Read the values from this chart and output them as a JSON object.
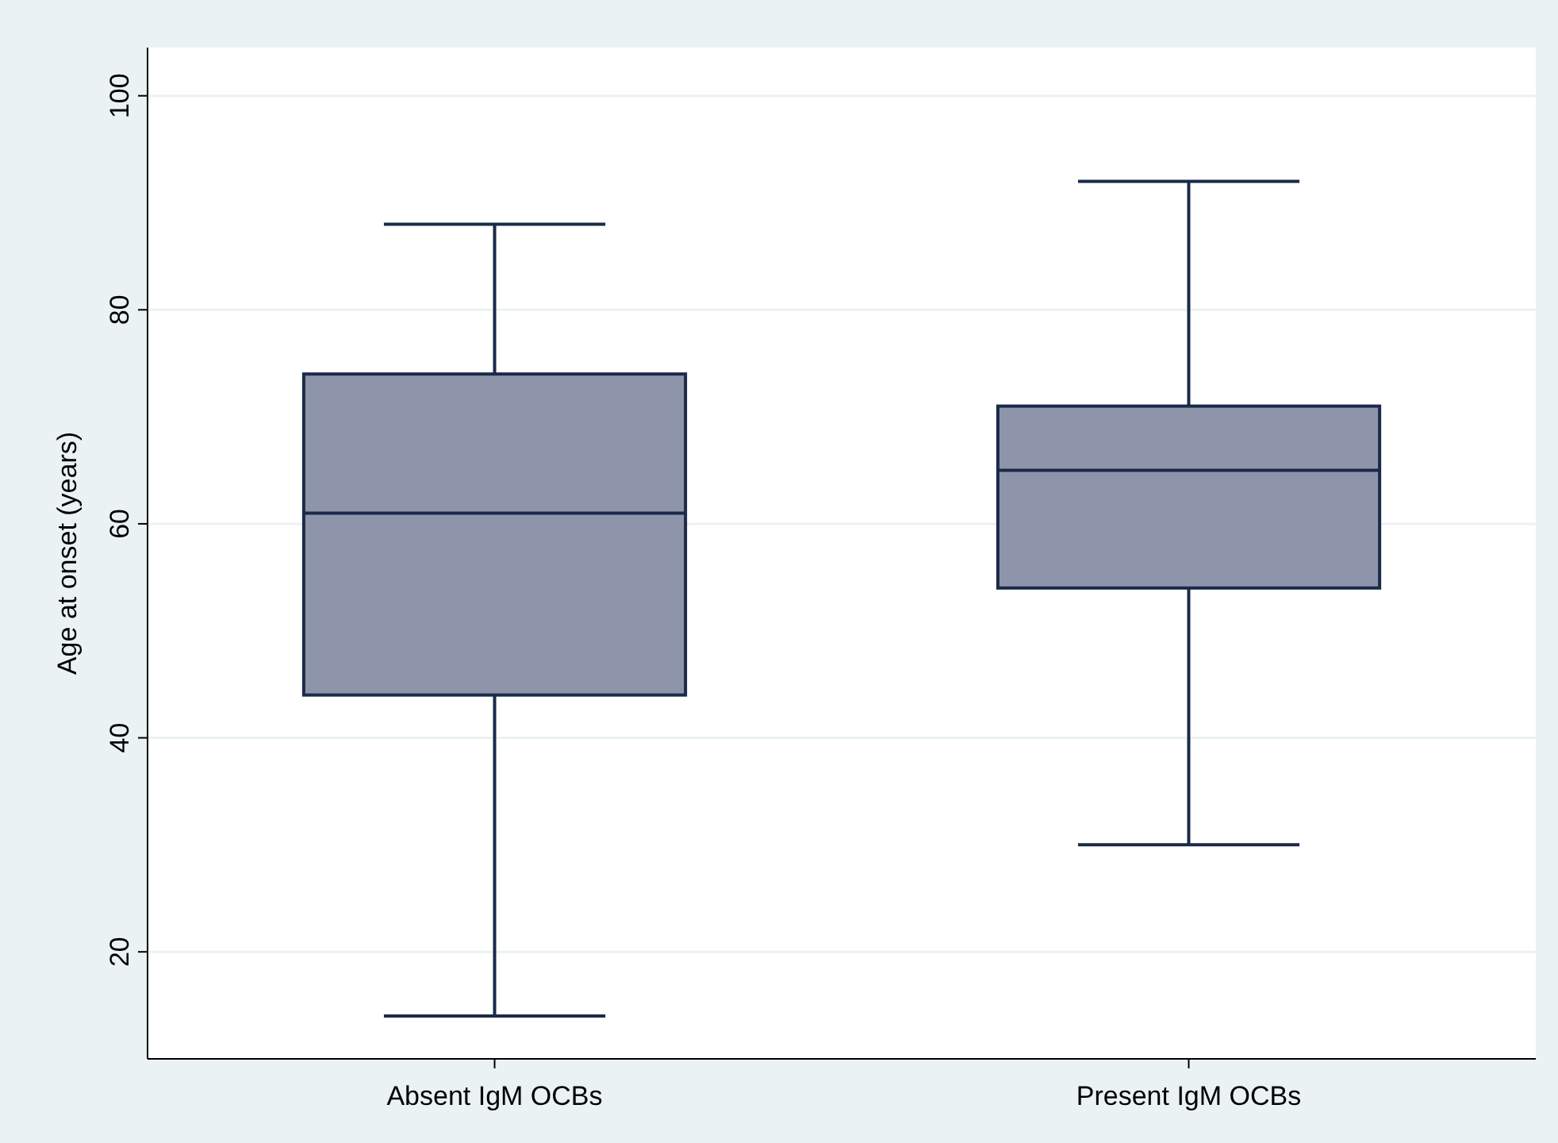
{
  "chart_data": {
    "type": "box",
    "ylabel": "Age at onset (years)",
    "categories": [
      "Absent IgM OCBs",
      "Present IgM OCBs"
    ],
    "series": [
      {
        "color": "#8e95aa",
        "boxes": [
          {
            "low": 14,
            "q1": 44,
            "median": 61,
            "q3": 74,
            "high": 88
          },
          {
            "low": 30,
            "q1": 54,
            "median": 65,
            "q3": 71,
            "high": 92
          }
        ]
      }
    ],
    "ylim": [
      10,
      104.5
    ],
    "yticks": [
      20,
      40,
      60,
      80,
      100
    ],
    "grid": "y"
  }
}
